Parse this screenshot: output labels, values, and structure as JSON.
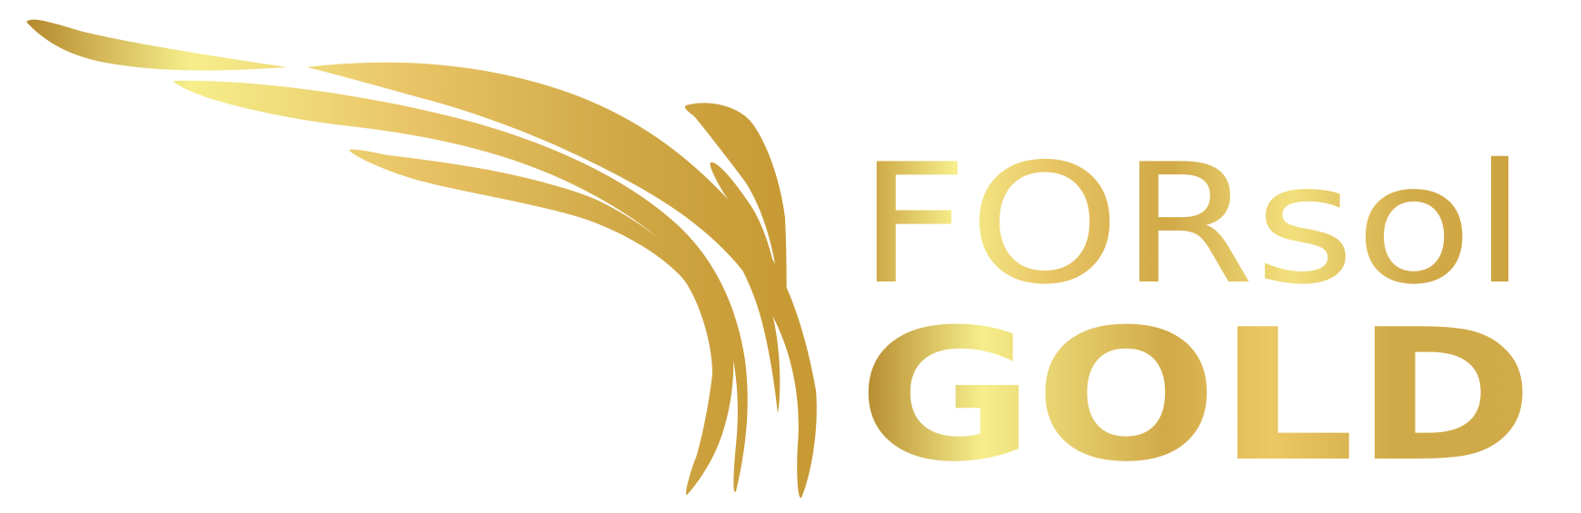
{
  "logo": {
    "wordmark_top": "FORsol",
    "wordmark_bottom": "GOLD"
  },
  "colors": {
    "background": "#ffffff",
    "gold_dark": "#b3862a",
    "gold_mid": "#d2a946",
    "gold_light": "#f6ee8b",
    "gold_warm": "#e9c463"
  },
  "icons": {
    "emblem": "gold-wing-icon"
  }
}
